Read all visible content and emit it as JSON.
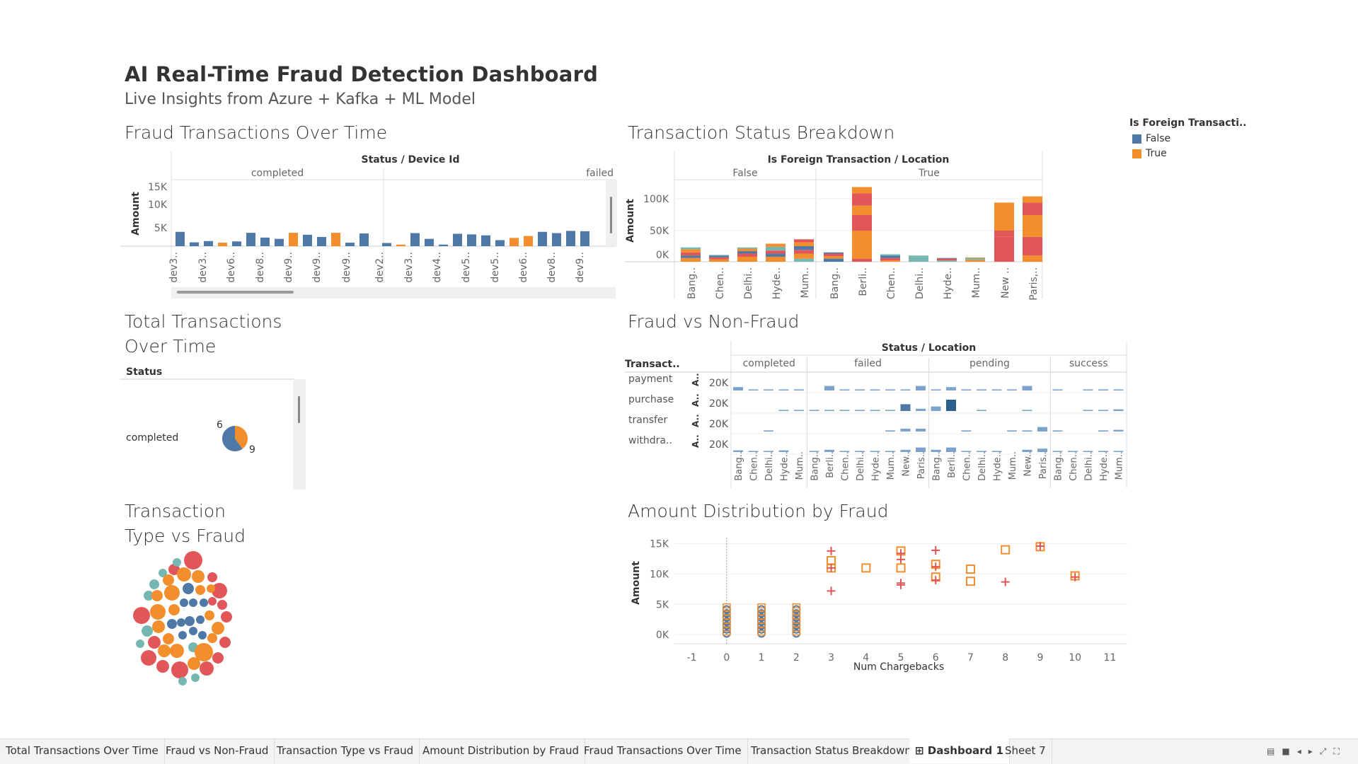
{
  "dashboard": {
    "title": "AI Real-Time Fraud Detection Dashboard",
    "subtitle": "Live Insights from Azure + Kafka + ML Model"
  },
  "colors": {
    "blue": "#4e79a7",
    "orange": "#f28e2b",
    "red": "#e15759",
    "teal": "#76b7b2",
    "lightblue": "#a0c4e4"
  },
  "legend": {
    "title": "Is Foreign Transacti..",
    "items": [
      {
        "label": "False",
        "color": "#4e79a7"
      },
      {
        "label": "True",
        "color": "#f28e2b"
      }
    ]
  },
  "fraud_over_time": {
    "title": "Fraud Transactions Over Time",
    "header": "Status  /  Device Id",
    "columns": [
      "completed",
      "failed"
    ],
    "ylabel": "Amount",
    "yticks": [
      "15K",
      "10K",
      "5K"
    ],
    "xlabels": [
      "dev3..",
      "dev3..",
      "dev6..",
      "dev8..",
      "dev9..",
      "dev9..",
      "dev9..",
      "dev2..",
      "dev3..",
      "dev4..",
      "dev5..",
      "dev5..",
      "dev6..",
      "dev8..",
      "dev9.."
    ],
    "bars": [
      {
        "v": 4500,
        "c": "blue"
      },
      {
        "v": 1200,
        "c": "blue"
      },
      {
        "v": 1600,
        "c": "blue"
      },
      {
        "v": 1100,
        "c": "orange"
      },
      {
        "v": 1500,
        "c": "blue"
      },
      {
        "v": 4200,
        "c": "blue"
      },
      {
        "v": 2700,
        "c": "blue"
      },
      {
        "v": 2300,
        "c": "blue"
      },
      {
        "v": 4200,
        "c": "orange"
      },
      {
        "v": 3600,
        "c": "blue"
      },
      {
        "v": 2900,
        "c": "blue"
      },
      {
        "v": 4200,
        "c": "orange"
      },
      {
        "v": 1100,
        "c": "blue"
      },
      {
        "v": 4000,
        "c": "blue"
      },
      {
        "v": 1000,
        "c": "blue"
      },
      {
        "v": 500,
        "c": "orange"
      },
      {
        "v": 4100,
        "c": "blue"
      },
      {
        "v": 2300,
        "c": "blue"
      },
      {
        "v": 500,
        "c": "blue"
      },
      {
        "v": 3900,
        "c": "blue"
      },
      {
        "v": 3700,
        "c": "blue"
      },
      {
        "v": 3400,
        "c": "blue"
      },
      {
        "v": 1900,
        "c": "blue"
      },
      {
        "v": 2600,
        "c": "orange"
      },
      {
        "v": 3200,
        "c": "orange"
      },
      {
        "v": 4500,
        "c": "blue"
      },
      {
        "v": 4100,
        "c": "blue"
      },
      {
        "v": 4800,
        "c": "blue"
      },
      {
        "v": 4700,
        "c": "blue"
      }
    ]
  },
  "status_breakdown": {
    "title": "Transaction Status Breakdown",
    "header": "Is Foreign Transaction  /  Location",
    "columns": [
      "False",
      "True"
    ],
    "ylabel": "Amount",
    "yticks": [
      "100K",
      "50K",
      "0K"
    ],
    "xlabels": [
      "Bang..",
      "Chen..",
      "Delhi..",
      "Hyde..",
      "Mum..",
      "Bang..",
      "Berli..",
      "Chen..",
      "Delhi..",
      "Hyde..",
      "Mum..",
      "New ..",
      "Paris,.."
    ],
    "stacks": [
      [
        [
          "orange",
          6000
        ],
        [
          "blue",
          4000
        ],
        [
          "red",
          5000
        ],
        [
          "orange",
          5000
        ],
        [
          "teal",
          3000
        ]
      ],
      [
        [
          "orange",
          4000
        ],
        [
          "red",
          3000
        ],
        [
          "blue",
          3000
        ],
        [
          "teal",
          1000
        ]
      ],
      [
        [
          "orange",
          8000
        ],
        [
          "red",
          5000
        ],
        [
          "blue",
          4000
        ],
        [
          "orange",
          4000
        ],
        [
          "teal",
          2000
        ]
      ],
      [
        [
          "orange",
          8000
        ],
        [
          "blue",
          5000
        ],
        [
          "red",
          5000
        ],
        [
          "teal",
          6000
        ],
        [
          "orange",
          5000
        ]
      ],
      [
        [
          "teal",
          5000
        ],
        [
          "orange",
          8000
        ],
        [
          "red",
          6000
        ],
        [
          "blue",
          6000
        ],
        [
          "orange",
          6000
        ],
        [
          "red",
          5000
        ]
      ],
      [
        [
          "blue",
          5000
        ],
        [
          "orange",
          4000
        ],
        [
          "red",
          4000
        ],
        [
          "blue",
          2000
        ]
      ],
      [
        [
          "red",
          5000
        ],
        [
          "orange",
          45000
        ],
        [
          "red",
          25000
        ],
        [
          "orange",
          15000
        ],
        [
          "red",
          20000
        ],
        [
          "orange",
          10000
        ]
      ],
      [
        [
          "orange",
          2000
        ],
        [
          "red",
          4000
        ],
        [
          "blue",
          4000
        ],
        [
          "teal",
          2000
        ]
      ],
      [
        [
          "teal",
          10000
        ]
      ],
      [
        [
          "teal",
          2000
        ],
        [
          "red",
          3000
        ],
        [
          "blue",
          1000
        ]
      ],
      [
        [
          "orange",
          3000
        ],
        [
          "teal",
          3000
        ],
        [
          "orange",
          1000
        ]
      ],
      [
        [
          "red",
          25000
        ],
        [
          "red",
          15000
        ],
        [
          "red",
          10000
        ],
        [
          "orange",
          45000
        ]
      ],
      [
        [
          "orange",
          10000
        ],
        [
          "red",
          30000
        ],
        [
          "orange",
          35000
        ],
        [
          "red",
          20000
        ],
        [
          "orange",
          10000
        ]
      ]
    ]
  },
  "total_transactions": {
    "title_line1": "Total Transactions",
    "title_line2": "Over Time",
    "header": "Status",
    "row_label": "completed",
    "pie": [
      {
        "label": "6",
        "value": 6,
        "c": "orange"
      },
      {
        "label": "9",
        "value": 9,
        "c": "blue"
      }
    ]
  },
  "fraud_vs_nonfraud": {
    "title": "Fraud vs Non-Fraud",
    "header": "Status  /  Location",
    "row_header": "Transact..",
    "columns": [
      {
        "label": "completed",
        "locs": [
          "Bang..",
          "Chen..",
          "Delhi..",
          "Hyde..",
          "Mum.."
        ]
      },
      {
        "label": "failed",
        "locs": [
          "Bang..",
          "Berli..",
          "Chen..",
          "Delhi..",
          "Hyde..",
          "Mum..",
          "New..",
          "Paris.."
        ]
      },
      {
        "label": "pending",
        "locs": [
          "Bang..",
          "Berli..",
          "Chen..",
          "Delhi..",
          "Hyde..",
          "Mum..",
          "New..",
          "Paris.."
        ]
      },
      {
        "label": "success",
        "locs": [
          "Bang..",
          "Chen..",
          "Delhi..",
          "Hyde..",
          "Mum.."
        ]
      }
    ],
    "rows": [
      {
        "label": "payment",
        "sub": "A..",
        "tick": "20K",
        "v": [
          [
            0.6,
            0.2,
            0.2,
            0.2,
            0.2
          ],
          [
            0.0,
            0.8,
            0.2,
            0.2,
            0.2,
            0.2,
            0.2,
            0.8
          ],
          [
            0.2,
            0.6,
            0.2,
            0.2,
            0.2,
            0.2,
            0.8,
            0.0
          ],
          [
            0.2,
            0.0,
            0.2,
            0.2,
            0.2
          ]
        ]
      },
      {
        "label": "purchase",
        "sub": "A..",
        "tick": "20K",
        "v": [
          [
            0.0,
            0.0,
            0.0,
            0.2,
            0.2
          ],
          [
            0.2,
            0.2,
            0.2,
            0.2,
            0.2,
            0.2,
            1.2,
            0.4
          ],
          [
            0.8,
            2.0,
            0.0,
            0.2,
            0.0,
            0.0,
            0.2,
            0.0
          ],
          [
            0.0,
            0.0,
            0.2,
            0.2,
            0.3
          ]
        ]
      },
      {
        "label": "transfer",
        "sub": "A..",
        "tick": "20K",
        "v": [
          [
            0.0,
            0.0,
            0.2,
            0.0,
            0.0
          ],
          [
            0.0,
            0.0,
            0.0,
            0.0,
            0.0,
            0.2,
            0.5,
            0.5
          ],
          [
            0.0,
            0.0,
            0.2,
            0.0,
            0.0,
            0.2,
            0.2,
            0.8
          ],
          [
            0.2,
            0.0,
            0.0,
            0.2,
            0.3
          ]
        ]
      },
      {
        "label": "withdra..",
        "sub": "A..",
        "tick": "20K",
        "v": [
          [
            0.3,
            0.2,
            0.2,
            0.3,
            0.0
          ],
          [
            0.2,
            0.4,
            0.2,
            0.2,
            0.2,
            0.2,
            0.4,
            0.8
          ],
          [
            0.4,
            0.8,
            0.2,
            0.2,
            0.2,
            0.0,
            0.4,
            0.6
          ],
          [
            0.2,
            0.2,
            0.2,
            0.2,
            0.2
          ]
        ]
      }
    ]
  },
  "type_vs_fraud": {
    "title_line1": "Transaction",
    "title_line2": "Type vs Fraud"
  },
  "amount_distribution": {
    "title": "Amount Distribution by Fraud",
    "ylabel": "Amount",
    "xlabel": "Num Chargebacks",
    "yticks": [
      {
        "v": 15000,
        "t": "15K"
      },
      {
        "v": 10000,
        "t": "10K"
      },
      {
        "v": 5000,
        "t": "5K"
      },
      {
        "v": 0,
        "t": "0K"
      }
    ],
    "xticks": [
      -1,
      0,
      1,
      2,
      3,
      4,
      5,
      6,
      7,
      8,
      9,
      10,
      11
    ],
    "points": [
      {
        "x": 3,
        "y": 13800,
        "m": "plus"
      },
      {
        "x": 3,
        "y": 12200,
        "m": "square"
      },
      {
        "x": 3,
        "y": 11000,
        "m": "square"
      },
      {
        "x": 3,
        "y": 11000,
        "m": "plus"
      },
      {
        "x": 3,
        "y": 7200,
        "m": "plus"
      },
      {
        "x": 4,
        "y": 11000,
        "m": "square"
      },
      {
        "x": 5,
        "y": 13800,
        "m": "square"
      },
      {
        "x": 5,
        "y": 13400,
        "m": "plus"
      },
      {
        "x": 5,
        "y": 12400,
        "m": "plus"
      },
      {
        "x": 5,
        "y": 11000,
        "m": "square"
      },
      {
        "x": 5,
        "y": 8500,
        "m": "plus"
      },
      {
        "x": 5,
        "y": 8200,
        "m": "plus"
      },
      {
        "x": 6,
        "y": 13900,
        "m": "plus"
      },
      {
        "x": 6,
        "y": 11600,
        "m": "square"
      },
      {
        "x": 6,
        "y": 11200,
        "m": "plus"
      },
      {
        "x": 6,
        "y": 9500,
        "m": "square"
      },
      {
        "x": 6,
        "y": 9000,
        "m": "plus"
      },
      {
        "x": 7,
        "y": 10800,
        "m": "square"
      },
      {
        "x": 7,
        "y": 8800,
        "m": "square"
      },
      {
        "x": 8,
        "y": 14000,
        "m": "square"
      },
      {
        "x": 8,
        "y": 8700,
        "m": "plus"
      },
      {
        "x": 9,
        "y": 14500,
        "m": "square"
      },
      {
        "x": 9,
        "y": 14600,
        "m": "plus"
      },
      {
        "x": 10,
        "y": 9700,
        "m": "square"
      },
      {
        "x": 10,
        "y": 9500,
        "m": "plus"
      }
    ]
  },
  "tabs": [
    {
      "label": "Total Transactions Over Time"
    },
    {
      "label": "Fraud vs Non-Fraud"
    },
    {
      "label": "Transaction Type vs Fraud"
    },
    {
      "label": "Amount Distribution by Fraud"
    },
    {
      "label": "Fraud Transactions Over Time"
    },
    {
      "label": "Transaction Status Breakdown"
    },
    {
      "label": "Dashboard 1",
      "active": true
    },
    {
      "label": "Sheet 7"
    }
  ]
}
